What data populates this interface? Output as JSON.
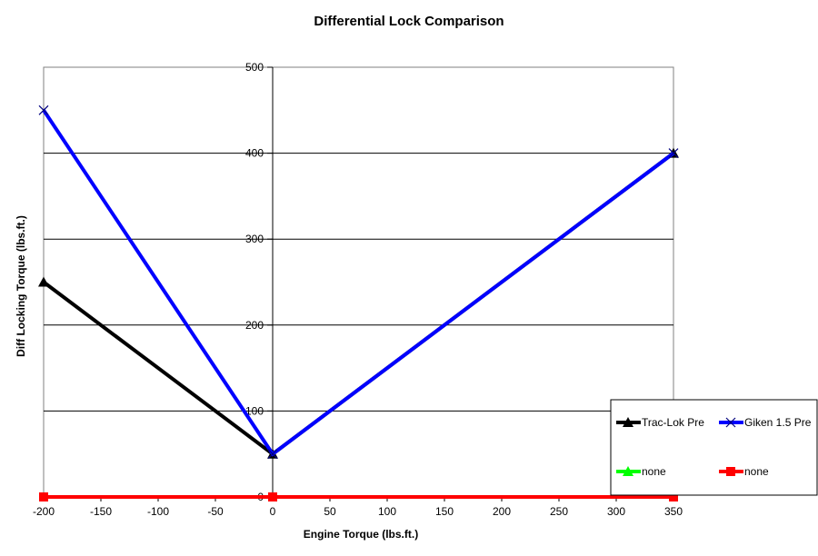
{
  "chart_data": {
    "type": "line",
    "title": "Differential Lock Comparison",
    "xlabel": "Engine Torque (lbs.ft.)",
    "ylabel": "Diff Locking Torque (lbs.ft.)",
    "xlim": [
      -200,
      350
    ],
    "ylim": [
      0,
      500
    ],
    "x_ticks": [
      -200,
      -150,
      -100,
      -50,
      0,
      50,
      100,
      150,
      200,
      250,
      300,
      350
    ],
    "y_ticks": [
      0,
      100,
      200,
      300,
      400,
      500
    ],
    "grid": "horizontal major gridlines",
    "legend_position": "bottom-right",
    "series": [
      {
        "name": "Trac-Lok Pre",
        "color": "#000000",
        "marker": "triangle",
        "x": [
          -200,
          0,
          350
        ],
        "y": [
          250,
          50,
          400
        ]
      },
      {
        "name": "Giken 1.5 Pre",
        "color": "#0000ff",
        "marker": "x",
        "x": [
          -200,
          0,
          350
        ],
        "y": [
          450,
          50,
          400
        ]
      },
      {
        "name": "none",
        "color": "#00ff00",
        "marker": "triangle",
        "x": [],
        "y": []
      },
      {
        "name": "none",
        "color": "#ff0000",
        "marker": "square",
        "x": [
          -200,
          0,
          350
        ],
        "y": [
          0,
          0,
          0
        ]
      }
    ]
  }
}
